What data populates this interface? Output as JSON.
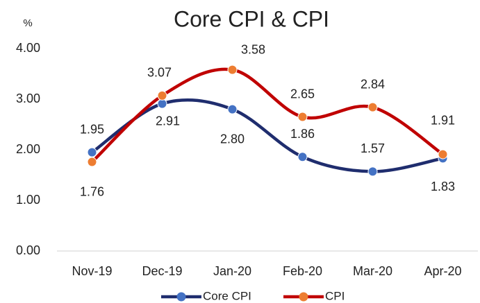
{
  "chart_data": {
    "type": "line",
    "title": "Core CPI & CPI",
    "y_label": "%",
    "categories": [
      "Nov-19",
      "Dec-19",
      "Jan-20",
      "Feb-20",
      "Mar-20",
      "Apr-20"
    ],
    "series": [
      {
        "name": "Core CPI",
        "color": "#1f2d6e",
        "marker_color": "#4472c4",
        "values": [
          1.95,
          2.91,
          2.8,
          1.86,
          1.57,
          1.83
        ],
        "value_labels": [
          "1.95",
          "2.91",
          "2.80",
          "1.86",
          "1.57",
          "1.83"
        ]
      },
      {
        "name": "CPI",
        "color": "#c00000",
        "marker_color": "#ed7d31",
        "values": [
          1.76,
          3.07,
          3.58,
          2.65,
          2.84,
          1.91
        ],
        "value_labels": [
          "1.76",
          "3.07",
          "3.58",
          "2.65",
          "2.84",
          "1.91"
        ]
      }
    ],
    "ylim": [
      0,
      4
    ],
    "yticks": [
      {
        "value": 0,
        "label": "0.00"
      },
      {
        "value": 1,
        "label": "1.00"
      },
      {
        "value": 2,
        "label": "2.00"
      },
      {
        "value": 3,
        "label": "3.00"
      },
      {
        "value": 4,
        "label": "4.00"
      }
    ],
    "grid": false,
    "legend": "bottom",
    "smooth": true
  }
}
